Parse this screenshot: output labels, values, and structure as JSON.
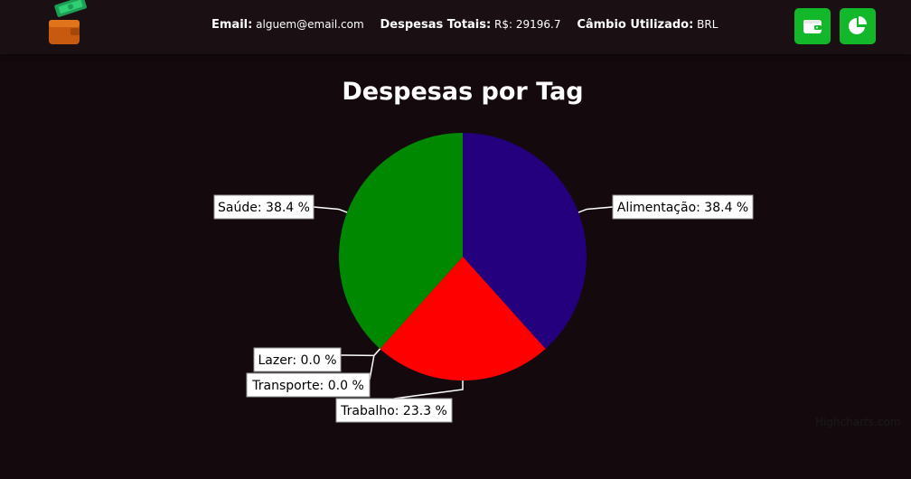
{
  "header": {
    "email_label": "Email:",
    "email_value": "alguem@email.com",
    "total_label": "Despesas Totais:",
    "total_value": "R$: 29196.7",
    "currency_label": "Câmbio Utilizado:",
    "currency_value": "BRL",
    "icons": [
      "wallet-icon",
      "pie-chart-icon"
    ],
    "accent_color": "#12b82a"
  },
  "chart_data": {
    "type": "pie",
    "title": "Despesas por Tag",
    "slices": [
      {
        "name": "Alimentação",
        "value": 38.4,
        "label": "Alimentação: 38.4 %",
        "color": "#24007f"
      },
      {
        "name": "Trabalho",
        "value": 23.3,
        "label": "Trabalho: 23.3 %",
        "color": "#ff0000"
      },
      {
        "name": "Transporte",
        "value": 0.0,
        "label": "Transporte: 0.0 %",
        "color": "#ffa500"
      },
      {
        "name": "Lazer",
        "value": 0.0,
        "label": "Lazer: 0.0 %",
        "color": "#ffff00"
      },
      {
        "name": "Saúde",
        "value": 38.4,
        "label": "Saúde: 38.4 %",
        "color": "#008800"
      }
    ],
    "credits": "Highcharts.com"
  }
}
